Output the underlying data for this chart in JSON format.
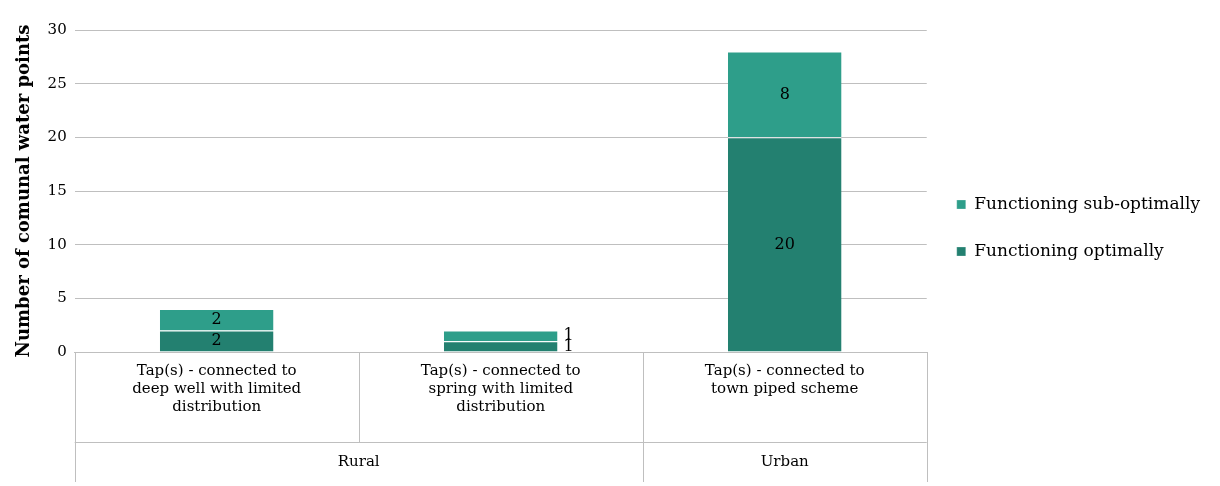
{
  "chart_data": {
    "type": "bar",
    "stacked": true,
    "ylabel": "Number of comunal water points",
    "categories": [
      "Tap(s) - connected to deep well with limited distribution",
      "Tap(s) - connected to spring with limited distribution",
      "Tap(s) - connected to town piped scheme"
    ],
    "series": [
      {
        "name": "Functioning optimally",
        "color": "#238070",
        "values": [
          2,
          1,
          20
        ]
      },
      {
        "name": "Functioning sub-optimally",
        "color": "#2e9e8a",
        "values": [
          2,
          1,
          8
        ]
      }
    ],
    "ylim": [
      0,
      30
    ],
    "yticks": [
      0,
      5,
      10,
      15,
      20,
      25,
      30
    ],
    "grid": "y",
    "legend": "right",
    "data_labels": true,
    "annotations": [
      "Rural",
      "Urban"
    ]
  }
}
